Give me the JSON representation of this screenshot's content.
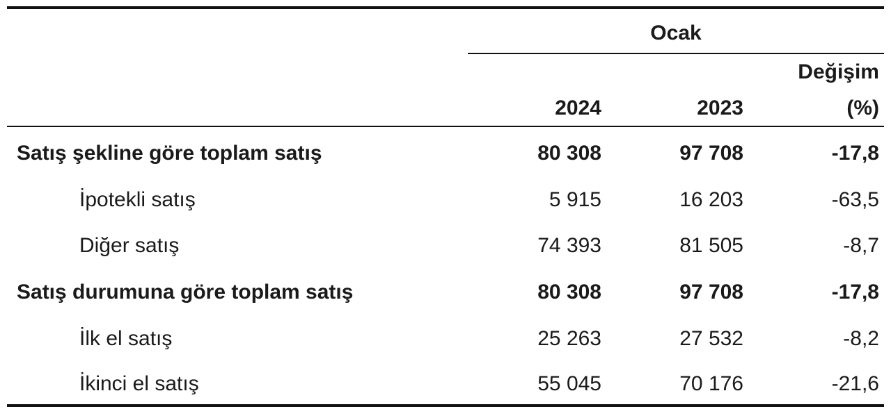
{
  "table": {
    "group_header": "Ocak",
    "columns": {
      "year_current": "2024",
      "year_previous": "2023",
      "change_line1": "Değişim",
      "change_line2": "(%)"
    },
    "rows": [
      {
        "label": "Satış şekline göre toplam satış",
        "v2024": "80 308",
        "v2023": "97 708",
        "change": "-17,8",
        "bold": true
      },
      {
        "label": "İpotekli satış",
        "v2024": "5 915",
        "v2023": "16 203",
        "change": "-63,5",
        "bold": false
      },
      {
        "label": "Diğer satış",
        "v2024": "74 393",
        "v2023": "81 505",
        "change": "-8,7",
        "bold": false
      },
      {
        "label": "Satış durumuna göre toplam satış",
        "v2024": "80 308",
        "v2023": "97 708",
        "change": "-17,8",
        "bold": true
      },
      {
        "label": "İlk el satış",
        "v2024": "25 263",
        "v2023": "27 532",
        "change": "-8,2",
        "bold": false
      },
      {
        "label": "İkinci el satış",
        "v2024": "55 045",
        "v2023": "70 176",
        "change": "-21,6",
        "bold": false
      }
    ]
  }
}
